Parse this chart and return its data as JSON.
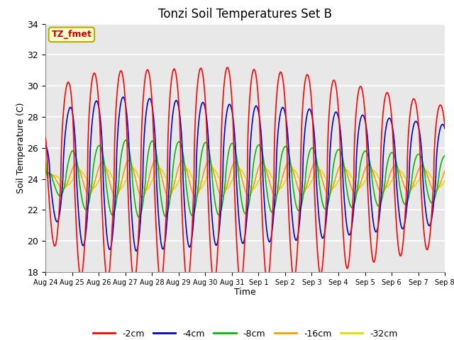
{
  "title": "Tonzi Soil Temperatures Set B",
  "xlabel": "Time",
  "ylabel": "Soil Temperature (C)",
  "ylim": [
    18,
    34
  ],
  "yticks": [
    18,
    20,
    22,
    24,
    26,
    28,
    30,
    32,
    34
  ],
  "colors": {
    "-2cm": "#ff0000",
    "-4cm": "#0000cc",
    "-8cm": "#00bb00",
    "-16cm": "#ff9900",
    "-32cm": "#dddd00"
  },
  "legend_label": "TZ_fmet",
  "legend_box_color": "#ffffcc",
  "legend_box_border": "#bbaa00",
  "legend_text_color": "#cc0000",
  "bg_color": "#e8e8e8",
  "n_points": 2160,
  "total_days": 15
}
